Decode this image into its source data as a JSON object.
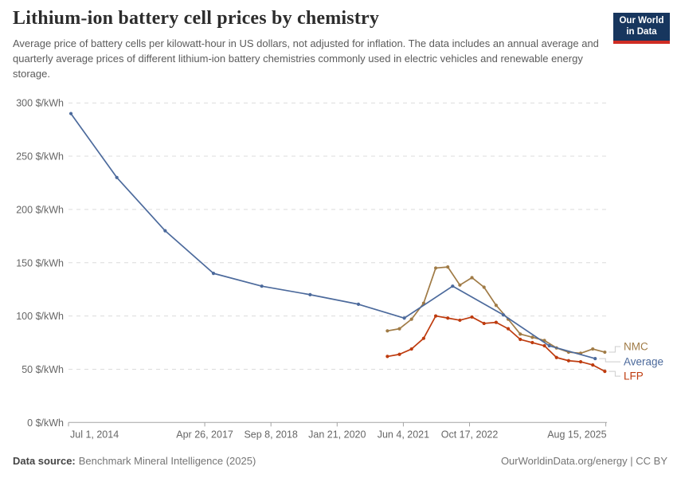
{
  "header": {
    "title": "Lithium-ion battery cell prices by chemistry",
    "subtitle": "Average price of battery cells per kilowatt-hour in US dollars, not adjusted for inflation. The data includes an annual average and quarterly average prices of different lithium-ion battery chemistries commonly used in electric vehicles and renewable energy storage.",
    "logo": {
      "line1": "Our World",
      "line2": "in Data"
    }
  },
  "footer": {
    "source_label": "Data source:",
    "source_value": "Benchmark Mineral Intelligence (2025)",
    "credit": "OurWorldinData.org/energy | CC BY"
  },
  "colors": {
    "nmc": "#A07B46",
    "average": "#4C6A9C",
    "lfp": "#BE3B0E",
    "grid": "#dcdcdc",
    "axis": "#a3a3a3",
    "tick_text": "#666666",
    "logo_navy": "#17365e",
    "logo_red": "#cf2d24"
  },
  "chart_data": {
    "type": "line",
    "title": "Lithium-ion battery cell prices by chemistry",
    "unit": "$/kWh",
    "xlabel": "",
    "ylabel": "$/kWh",
    "ylim": [
      0,
      300
    ],
    "yticks": [
      0,
      50,
      100,
      150,
      200,
      250,
      300
    ],
    "ytick_suffix": " $/kWh",
    "xlim": [
      2014.5,
      2025.62
    ],
    "grid": "horizontal-dashed",
    "legend_position": "right-of-line-ends",
    "xticks": [
      {
        "label": "Jul 1, 2014",
        "t": 2014.5,
        "align": "start"
      },
      {
        "label": "Apr 26, 2017",
        "t": 2017.32,
        "align": "middle"
      },
      {
        "label": "Sep 8, 2018",
        "t": 2018.69,
        "align": "middle"
      },
      {
        "label": "Jan 21, 2020",
        "t": 2020.06,
        "align": "middle"
      },
      {
        "label": "Jun 4, 2021",
        "t": 2021.43,
        "align": "middle"
      },
      {
        "label": "Oct 17, 2022",
        "t": 2022.8,
        "align": "middle"
      },
      {
        "label": "Aug 15, 2025",
        "t": 2025.62,
        "align": "end"
      }
    ],
    "series": [
      {
        "name": "NMC",
        "color": "#A07B46",
        "cadence": "quarterly",
        "points": [
          [
            2021.1,
            86
          ],
          [
            2021.35,
            88
          ],
          [
            2021.6,
            97
          ],
          [
            2021.85,
            112
          ],
          [
            2022.1,
            145
          ],
          [
            2022.35,
            146
          ],
          [
            2022.6,
            129
          ],
          [
            2022.85,
            136
          ],
          [
            2023.1,
            127
          ],
          [
            2023.35,
            110
          ],
          [
            2023.6,
            97
          ],
          [
            2023.85,
            83
          ],
          [
            2024.1,
            80
          ],
          [
            2024.35,
            77
          ],
          [
            2024.6,
            70
          ],
          [
            2024.85,
            66
          ],
          [
            2025.1,
            65
          ],
          [
            2025.35,
            69
          ],
          [
            2025.6,
            66
          ]
        ]
      },
      {
        "name": "LFP",
        "color": "#BE3B0E",
        "cadence": "quarterly",
        "points": [
          [
            2021.1,
            62
          ],
          [
            2021.35,
            64
          ],
          [
            2021.6,
            69
          ],
          [
            2021.85,
            79
          ],
          [
            2022.1,
            100
          ],
          [
            2022.35,
            98
          ],
          [
            2022.6,
            96
          ],
          [
            2022.85,
            99
          ],
          [
            2023.1,
            93
          ],
          [
            2023.35,
            94
          ],
          [
            2023.6,
            88
          ],
          [
            2023.85,
            78
          ],
          [
            2024.1,
            75
          ],
          [
            2024.35,
            72
          ],
          [
            2024.6,
            61
          ],
          [
            2024.85,
            58
          ],
          [
            2025.1,
            57
          ],
          [
            2025.35,
            54
          ],
          [
            2025.6,
            48
          ]
        ]
      },
      {
        "name": "Average",
        "color": "#4C6A9C",
        "cadence": "annual",
        "points": [
          [
            2014.55,
            290
          ],
          [
            2015.5,
            230
          ],
          [
            2016.5,
            180
          ],
          [
            2017.5,
            140
          ],
          [
            2018.5,
            128
          ],
          [
            2019.5,
            120
          ],
          [
            2020.5,
            111
          ],
          [
            2021.45,
            98
          ],
          [
            2022.45,
            128
          ],
          [
            2023.5,
            101
          ],
          [
            2024.45,
            72
          ],
          [
            2025.4,
            60
          ]
        ]
      }
    ]
  }
}
